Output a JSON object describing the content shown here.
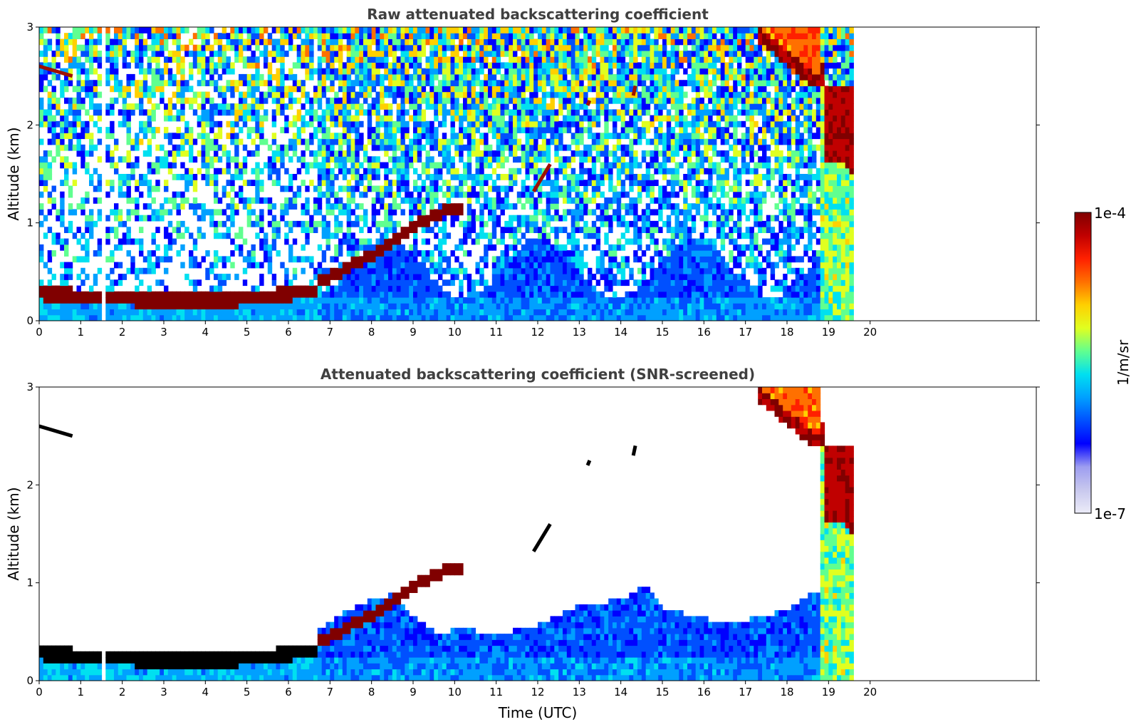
{
  "chart_data": [
    {
      "type": "heatmap",
      "title": "Raw attenuated backscattering coefficient",
      "xlabel": "",
      "ylabel": "Altitude (km)",
      "xlim": [
        0,
        24
      ],
      "ylim": [
        0,
        3
      ],
      "x_ticks": [
        "0",
        "1",
        "2",
        "3",
        "4",
        "5",
        "6",
        "7",
        "8",
        "9",
        "10",
        "11",
        "12",
        "13",
        "14",
        "15",
        "16",
        "17",
        "18",
        "19",
        "20"
      ],
      "y_ticks": [
        "0",
        "1",
        "2",
        "3"
      ],
      "data_extent_hours": [
        0,
        19.6
      ],
      "grid": false,
      "features": {
        "boundary_layer": [
          [
            0,
            0.25
          ],
          [
            0.5,
            0.24
          ],
          [
            1,
            0.22
          ],
          [
            1.5,
            0.2
          ],
          [
            2,
            0.2
          ],
          [
            2.5,
            0.18
          ],
          [
            3,
            0.18
          ],
          [
            3.5,
            0.17
          ],
          [
            4,
            0.17
          ],
          [
            4.5,
            0.18
          ],
          [
            5,
            0.2
          ],
          [
            5.5,
            0.22
          ],
          [
            6,
            0.25
          ],
          [
            6.6,
            0.27
          ]
        ],
        "rising_layer": [
          [
            6.8,
            0.4
          ],
          [
            7.2,
            0.48
          ],
          [
            7.6,
            0.58
          ],
          [
            8,
            0.66
          ],
          [
            8.5,
            0.8
          ],
          [
            9,
            0.95
          ],
          [
            9.5,
            1.05
          ],
          [
            10,
            1.13
          ]
        ],
        "elevated_cloud_segments": [
          [
            [
              0,
              2.6
            ],
            [
              0.8,
              2.5
            ]
          ],
          [
            [
              11.9,
              1.32
            ],
            [
              12.3,
              1.6
            ]
          ],
          [
            [
              13.2,
              2.2
            ],
            [
              13.25,
              2.25
            ]
          ],
          [
            [
              14.3,
              2.3
            ],
            [
              14.35,
              2.4
            ]
          ]
        ],
        "thick_cloud": {
          "x_range": [
            17.2,
            19.6
          ],
          "top": 3,
          "base_at_18_6": 2.5,
          "base_at_19_4": 1.6
        }
      }
    },
    {
      "type": "heatmap",
      "title": "Attenuated backscattering coefficient (SNR-screened)",
      "xlabel": "Time (UTC)",
      "ylabel": "Altitude (km)",
      "xlim": [
        0,
        24
      ],
      "ylim": [
        0,
        3
      ],
      "x_ticks": [
        "0",
        "1",
        "2",
        "3",
        "4",
        "5",
        "6",
        "7",
        "8",
        "9",
        "10",
        "11",
        "12",
        "13",
        "14",
        "15",
        "16",
        "17",
        "18",
        "19",
        "20"
      ],
      "y_ticks": [
        "0",
        "1",
        "2",
        "3"
      ],
      "data_extent_hours": [
        0,
        19.6
      ],
      "grid": false,
      "features": {
        "screened_mask_top": [
          [
            0,
            0.4
          ],
          [
            1,
            0.4
          ],
          [
            2,
            0.35
          ],
          [
            3,
            0.33
          ],
          [
            4,
            0.32
          ],
          [
            5,
            0.36
          ],
          [
            6,
            0.4
          ],
          [
            6.6,
            0.45
          ],
          [
            7,
            0.6
          ],
          [
            7.5,
            0.72
          ],
          [
            8,
            0.82
          ],
          [
            8.5,
            0.85
          ],
          [
            9,
            0.6
          ],
          [
            9.5,
            0.45
          ],
          [
            10,
            0.5
          ],
          [
            11,
            0.45
          ],
          [
            12,
            0.55
          ],
          [
            13,
            0.75
          ],
          [
            14,
            0.8
          ],
          [
            14.5,
            0.95
          ],
          [
            15,
            0.7
          ],
          [
            16,
            0.6
          ],
          [
            17,
            0.6
          ],
          [
            18,
            0.7
          ],
          [
            18.7,
            0.9
          ]
        ]
      }
    }
  ],
  "colorbar": {
    "label": "1/m/sr",
    "max_label": "1e-4",
    "min_label": "1e-7",
    "scale": "log",
    "range": [
      1e-07,
      0.0001
    ],
    "colormap": [
      "#ececf8",
      "#c8c8ee",
      "#9d9df0",
      "#0000ff",
      "#0050ff",
      "#00a0ff",
      "#00e0f0",
      "#60ff90",
      "#e0ff20",
      "#ffd000",
      "#ff7000",
      "#ff2000",
      "#c00000",
      "#800000"
    ]
  }
}
